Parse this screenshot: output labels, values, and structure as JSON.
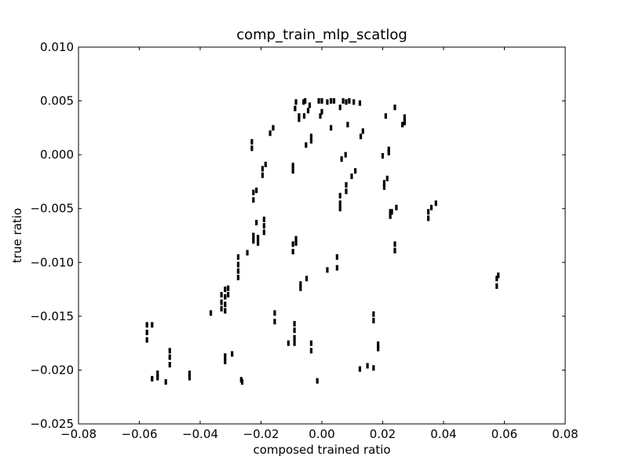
{
  "chart_data": {
    "type": "scatter",
    "title": "comp_train_mlp_scatlog",
    "xlabel": "composed trained ratio",
    "ylabel": "true ratio",
    "xlim": [
      -0.08,
      0.08
    ],
    "ylim": [
      -0.025,
      0.01
    ],
    "xticks": [
      -0.08,
      -0.06,
      -0.04,
      -0.02,
      0.0,
      0.02,
      0.04,
      0.06,
      0.08
    ],
    "yticks": [
      -0.025,
      -0.02,
      -0.015,
      -0.01,
      -0.005,
      0.0,
      0.005,
      0.01
    ],
    "xtick_labels": [
      "−0.08",
      "−0.06",
      "−0.04",
      "−0.02",
      "0.00",
      "0.02",
      "0.04",
      "0.06",
      "0.08"
    ],
    "ytick_labels": [
      "−0.025",
      "−0.020",
      "−0.015",
      "−0.010",
      "−0.005",
      "0.000",
      "0.005",
      "0.010"
    ],
    "grid": false,
    "marker_color": "#000000",
    "points": [
      [
        -0.0575,
        -0.0158
      ],
      [
        -0.0575,
        -0.0165
      ],
      [
        -0.0575,
        -0.0172
      ],
      [
        -0.0558,
        -0.0158
      ],
      [
        -0.0558,
        -0.0208
      ],
      [
        -0.054,
        -0.0203
      ],
      [
        -0.054,
        -0.0207
      ],
      [
        -0.0513,
        -0.0211
      ],
      [
        -0.05,
        -0.0182
      ],
      [
        -0.05,
        -0.0188
      ],
      [
        -0.05,
        -0.0195
      ],
      [
        -0.0435,
        -0.0203
      ],
      [
        -0.0435,
        -0.0207
      ],
      [
        -0.0365,
        -0.0147
      ],
      [
        -0.033,
        -0.013
      ],
      [
        -0.033,
        -0.0137
      ],
      [
        -0.033,
        -0.0143
      ],
      [
        -0.0318,
        -0.0125
      ],
      [
        -0.0318,
        -0.0132
      ],
      [
        -0.0318,
        -0.0139
      ],
      [
        -0.0318,
        -0.0145
      ],
      [
        -0.0318,
        -0.0187
      ],
      [
        -0.0318,
        -0.0192
      ],
      [
        -0.0308,
        -0.0124
      ],
      [
        -0.0308,
        -0.013
      ],
      [
        -0.0295,
        -0.0185
      ],
      [
        -0.0275,
        -0.0095
      ],
      [
        -0.0275,
        -0.0102
      ],
      [
        -0.0275,
        -0.0108
      ],
      [
        -0.0275,
        -0.0114
      ],
      [
        -0.0265,
        -0.0209
      ],
      [
        -0.0262,
        -0.0211
      ],
      [
        -0.0245,
        -0.0091
      ],
      [
        -0.023,
        0.0006
      ],
      [
        -0.023,
        0.0012
      ],
      [
        -0.0225,
        -0.0035
      ],
      [
        -0.0225,
        -0.0042
      ],
      [
        -0.0225,
        -0.0075
      ],
      [
        -0.0225,
        -0.008
      ],
      [
        -0.0215,
        -0.0033
      ],
      [
        -0.0215,
        -0.0063
      ],
      [
        -0.021,
        -0.0077
      ],
      [
        -0.021,
        -0.0082
      ],
      [
        -0.0195,
        -0.0013
      ],
      [
        -0.0195,
        -0.0019
      ],
      [
        -0.019,
        -0.006
      ],
      [
        -0.019,
        -0.0066
      ],
      [
        -0.019,
        -0.0072
      ],
      [
        -0.0185,
        -0.0009
      ],
      [
        -0.017,
        0.002
      ],
      [
        -0.016,
        0.0025
      ],
      [
        -0.0155,
        -0.0147
      ],
      [
        -0.0155,
        -0.0155
      ],
      [
        -0.011,
        -0.0175
      ],
      [
        -0.0095,
        -0.001
      ],
      [
        -0.0095,
        -0.0015
      ],
      [
        -0.0095,
        -0.0083
      ],
      [
        -0.0095,
        -0.009
      ],
      [
        -0.009,
        -0.0157
      ],
      [
        -0.009,
        -0.0163
      ],
      [
        -0.009,
        -0.017
      ],
      [
        -0.009,
        -0.0175
      ],
      [
        -0.0088,
        0.0043
      ],
      [
        -0.0085,
        0.0049
      ],
      [
        -0.0085,
        -0.0078
      ],
      [
        -0.0085,
        -0.0082
      ],
      [
        -0.0075,
        0.0033
      ],
      [
        -0.0075,
        0.0036
      ],
      [
        -0.007,
        -0.012
      ],
      [
        -0.007,
        -0.0124
      ],
      [
        -0.006,
        0.0049
      ],
      [
        -0.0058,
        0.0036
      ],
      [
        -0.0055,
        0.005
      ],
      [
        -0.0052,
        0.0009
      ],
      [
        -0.005,
        -0.0115
      ],
      [
        -0.0045,
        0.0041
      ],
      [
        -0.004,
        0.0046
      ],
      [
        -0.0035,
        0.0013
      ],
      [
        -0.0035,
        0.0017
      ],
      [
        -0.0035,
        -0.0175
      ],
      [
        -0.0035,
        -0.0182
      ],
      [
        -0.0015,
        -0.021
      ],
      [
        -0.001,
        0.005
      ],
      [
        -0.0005,
        0.0036
      ],
      [
        0.0,
        0.005
      ],
      [
        0.0,
        0.004
      ],
      [
        0.0018,
        0.0049
      ],
      [
        0.0018,
        -0.0107
      ],
      [
        0.003,
        0.005
      ],
      [
        0.003,
        0.0025
      ],
      [
        0.004,
        0.005
      ],
      [
        0.005,
        -0.0095
      ],
      [
        0.005,
        -0.0105
      ],
      [
        0.006,
        0.0044
      ],
      [
        0.006,
        -0.0038
      ],
      [
        0.006,
        -0.0045
      ],
      [
        0.006,
        -0.005
      ],
      [
        0.0065,
        -0.0004
      ],
      [
        0.007,
        0.005
      ],
      [
        0.0078,
        0.0
      ],
      [
        0.008,
        0.0049
      ],
      [
        0.008,
        -0.0028
      ],
      [
        0.008,
        -0.0034
      ],
      [
        0.0085,
        0.0028
      ],
      [
        0.009,
        0.005
      ],
      [
        0.0098,
        -0.002
      ],
      [
        0.0105,
        0.0049
      ],
      [
        0.011,
        -0.0015
      ],
      [
        0.0125,
        0.0048
      ],
      [
        0.0125,
        -0.0199
      ],
      [
        0.0128,
        0.0017
      ],
      [
        0.0135,
        0.0022
      ],
      [
        0.015,
        -0.0196
      ],
      [
        0.017,
        -0.0148
      ],
      [
        0.017,
        -0.0154
      ],
      [
        0.017,
        -0.0198
      ],
      [
        0.0185,
        -0.0176
      ],
      [
        0.0185,
        -0.018
      ],
      [
        0.02,
        -0.0001
      ],
      [
        0.0205,
        -0.0026
      ],
      [
        0.0205,
        -0.003
      ],
      [
        0.021,
        0.0036
      ],
      [
        0.0215,
        -0.0022
      ],
      [
        0.022,
        0.0002
      ],
      [
        0.022,
        0.0005
      ],
      [
        0.0225,
        -0.0053
      ],
      [
        0.0225,
        -0.0057
      ],
      [
        0.023,
        -0.0053
      ],
      [
        0.024,
        0.0044
      ],
      [
        0.024,
        -0.0083
      ],
      [
        0.024,
        -0.0089
      ],
      [
        0.0245,
        -0.0049
      ],
      [
        0.0265,
        0.0028
      ],
      [
        0.0272,
        0.003
      ],
      [
        0.0272,
        0.0035
      ],
      [
        0.035,
        -0.0053
      ],
      [
        0.035,
        -0.0059
      ],
      [
        0.036,
        -0.0049
      ],
      [
        0.0375,
        -0.0045
      ],
      [
        0.0575,
        -0.0115
      ],
      [
        0.0575,
        -0.0122
      ],
      [
        0.058,
        -0.0112
      ]
    ]
  }
}
